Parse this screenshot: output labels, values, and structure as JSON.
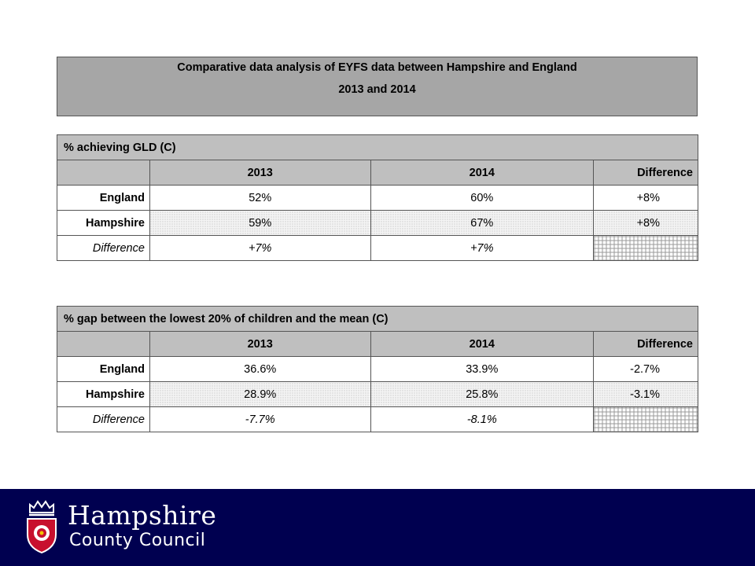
{
  "title": {
    "line1": "Comparative data analysis of EYFS data between Hampshire and England",
    "line2": "2013 and 2014"
  },
  "table1": {
    "section": "% achieving GLD (C)",
    "headers": [
      "",
      "2013",
      "2014",
      "Difference"
    ],
    "rows": [
      {
        "label": "England",
        "v2013": "52%",
        "v2014": "60%",
        "diff": "+8%"
      },
      {
        "label": "Hampshire",
        "v2013": "59%",
        "v2014": "67%",
        "diff": "+8%"
      },
      {
        "label": "Difference",
        "v2013": "+7%",
        "v2014": "+7%",
        "diff": ""
      }
    ]
  },
  "table2": {
    "section": "% gap between the lowest 20% of children and the mean (C)",
    "headers": [
      "",
      "2013",
      "2014",
      "Difference"
    ],
    "rows": [
      {
        "label": "England",
        "v2013": "36.6%",
        "v2014": "33.9%",
        "diff": "-2.7%"
      },
      {
        "label": "Hampshire",
        "v2013": "28.9%",
        "v2014": "25.8%",
        "diff": "-3.1%"
      },
      {
        "label": "Difference",
        "v2013": "-7.7%",
        "v2014": "-8.1%",
        "diff": ""
      }
    ]
  },
  "footer": {
    "brand_line1": "Hampshire",
    "brand_line2": "County Council",
    "background": "#000050",
    "logo_icon": "county-crest-icon"
  }
}
